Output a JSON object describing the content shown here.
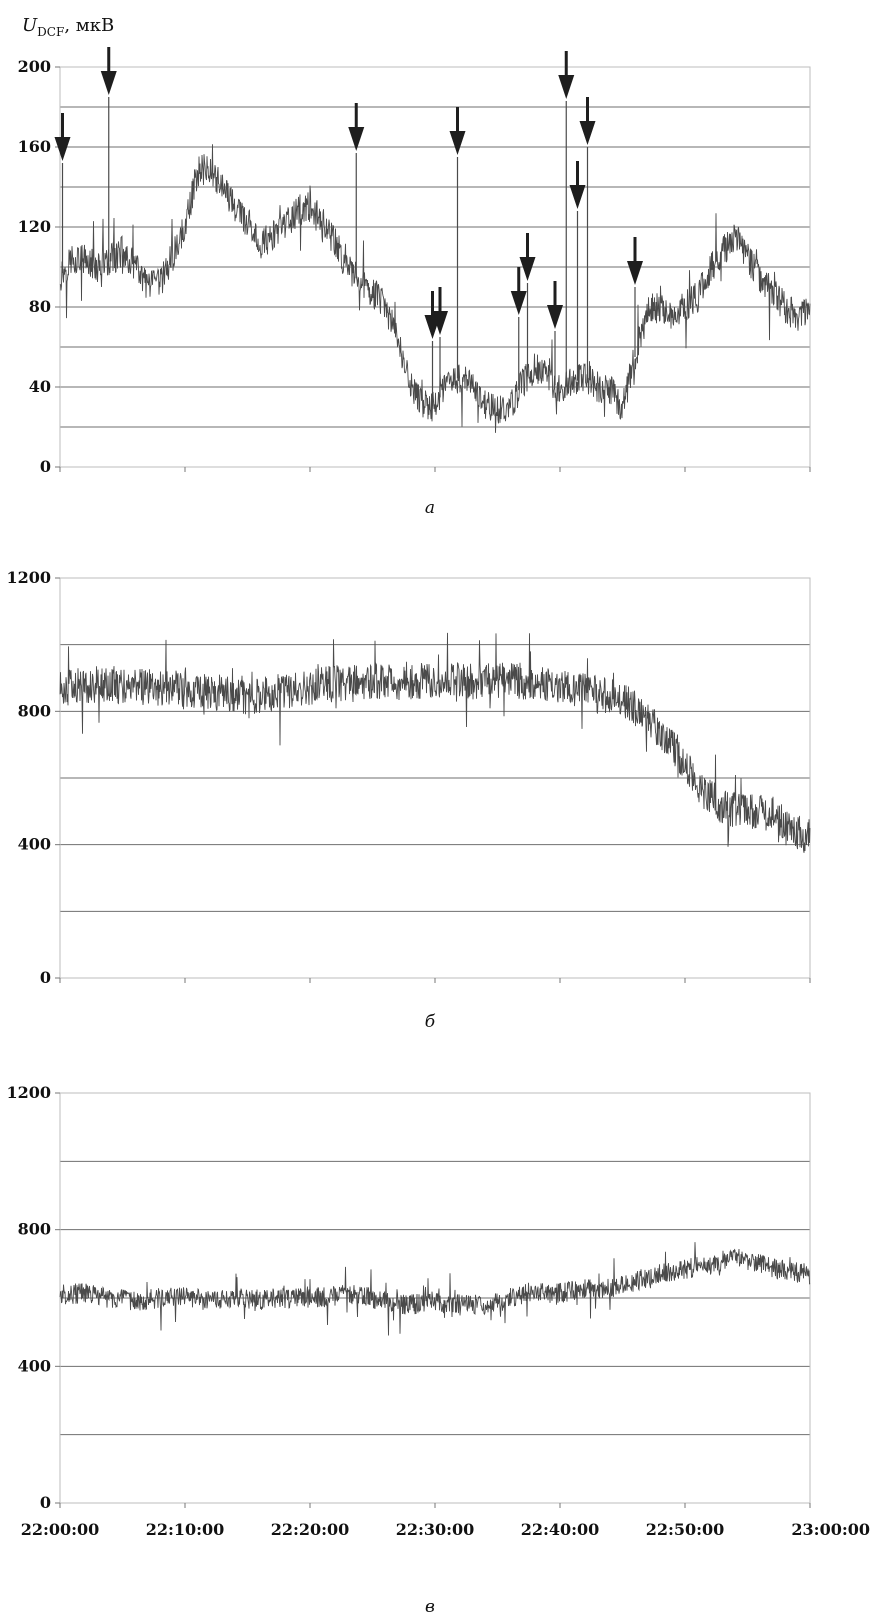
{
  "chart_data": [
    {
      "type": "line",
      "panel_label": "а",
      "ylabel": "U",
      "ylabel_sub": "DCF",
      "ylabel_unit": ", мкВ",
      "ylim": [
        0,
        200
      ],
      "yticks": [
        0,
        40,
        80,
        120,
        160,
        200
      ],
      "gridlines": [
        20,
        40,
        60,
        80,
        100,
        120,
        140,
        160,
        180
      ],
      "x_range_minutes": [
        0,
        60
      ],
      "series_color": "#4a4a4a",
      "baseline_points": [
        [
          0,
          95
        ],
        [
          1,
          105
        ],
        [
          2,
          103
        ],
        [
          3,
          100
        ],
        [
          4,
          103
        ],
        [
          5,
          108
        ],
        [
          6,
          100
        ],
        [
          7,
          90
        ],
        [
          8,
          92
        ],
        [
          9,
          105
        ],
        [
          10,
          120
        ],
        [
          11,
          148
        ],
        [
          12,
          150
        ],
        [
          13,
          140
        ],
        [
          14,
          130
        ],
        [
          15,
          122
        ],
        [
          16,
          112
        ],
        [
          17,
          115
        ],
        [
          18,
          120
        ],
        [
          19,
          128
        ],
        [
          20,
          130
        ],
        [
          21,
          122
        ],
        [
          22,
          112
        ],
        [
          23,
          100
        ],
        [
          24,
          92
        ],
        [
          25,
          88
        ],
        [
          26,
          80
        ],
        [
          27,
          65
        ],
        [
          28,
          40
        ],
        [
          29,
          32
        ],
        [
          30,
          30
        ],
        [
          31,
          42
        ],
        [
          32,
          45
        ],
        [
          33,
          40
        ],
        [
          34,
          32
        ],
        [
          35,
          28
        ],
        [
          36,
          30
        ],
        [
          37,
          42
        ],
        [
          38,
          50
        ],
        [
          39,
          45
        ],
        [
          40,
          38
        ],
        [
          41,
          42
        ],
        [
          42,
          45
        ],
        [
          43,
          40
        ],
        [
          44,
          38
        ],
        [
          45,
          30
        ],
        [
          46,
          55
        ],
        [
          47,
          78
        ],
        [
          48,
          80
        ],
        [
          49,
          76
        ],
        [
          50,
          80
        ],
        [
          51,
          85
        ],
        [
          52,
          98
        ],
        [
          53,
          108
        ],
        [
          54,
          115
        ],
        [
          55,
          105
        ],
        [
          56,
          95
        ],
        [
          57,
          88
        ],
        [
          58,
          80
        ],
        [
          59,
          75
        ],
        [
          60,
          80
        ]
      ],
      "noise_amplitude": 8,
      "spikes": [
        [
          0.2,
          152
        ],
        [
          3.9,
          185
        ],
        [
          23.7,
          157
        ],
        [
          29.8,
          63
        ],
        [
          30.4,
          65
        ],
        [
          31.8,
          155
        ],
        [
          36.7,
          75
        ],
        [
          37.4,
          92
        ],
        [
          39.6,
          68
        ],
        [
          40.5,
          183
        ],
        [
          41.4,
          128
        ],
        [
          42.2,
          160
        ],
        [
          46.0,
          90
        ]
      ],
      "arrows_at_spikes": true
    },
    {
      "type": "line",
      "panel_label": "б",
      "ylim": [
        0,
        1200
      ],
      "yticks": [
        0,
        400,
        800,
        1200
      ],
      "gridlines": [
        200,
        400,
        600,
        800,
        1000
      ],
      "x_range_minutes": [
        0,
        60
      ],
      "series_color": "#4a4a4a",
      "baseline_points": [
        [
          0,
          870
        ],
        [
          3,
          880
        ],
        [
          6,
          875
        ],
        [
          9,
          870
        ],
        [
          12,
          860
        ],
        [
          15,
          845
        ],
        [
          18,
          860
        ],
        [
          21,
          880
        ],
        [
          24,
          890
        ],
        [
          27,
          885
        ],
        [
          30,
          895
        ],
        [
          33,
          890
        ],
        [
          36,
          895
        ],
        [
          39,
          880
        ],
        [
          42,
          860
        ],
        [
          45,
          835
        ],
        [
          47,
          780
        ],
        [
          49,
          700
        ],
        [
          51,
          580
        ],
        [
          53,
          510
        ],
        [
          55,
          505
        ],
        [
          57,
          490
        ],
        [
          59,
          440
        ],
        [
          60,
          420
        ]
      ],
      "noise_amplitude": 55
    },
    {
      "type": "line",
      "panel_label": "в",
      "ylim": [
        0,
        1200
      ],
      "yticks": [
        0,
        400,
        800,
        1200
      ],
      "gridlines": [
        200,
        400,
        600,
        800,
        1000
      ],
      "x_range_minutes": [
        0,
        60
      ],
      "xtick_labels": [
        "22:00:00",
        "22:10:00",
        "22:20:00",
        "22:30:00",
        "22:40:00",
        "22:50:00",
        "23:00:00"
      ],
      "series_color": "#4a4a4a",
      "baseline_points": [
        [
          0,
          610
        ],
        [
          2,
          615
        ],
        [
          4,
          600
        ],
        [
          6,
          590
        ],
        [
          8,
          600
        ],
        [
          10,
          605
        ],
        [
          12,
          590
        ],
        [
          14,
          600
        ],
        [
          16,
          595
        ],
        [
          18,
          600
        ],
        [
          20,
          600
        ],
        [
          22,
          605
        ],
        [
          24,
          610
        ],
        [
          26,
          590
        ],
        [
          28,
          580
        ],
        [
          30,
          590
        ],
        [
          32,
          585
        ],
        [
          34,
          575
        ],
        [
          36,
          600
        ],
        [
          38,
          620
        ],
        [
          40,
          615
        ],
        [
          42,
          625
        ],
        [
          44,
          630
        ],
        [
          46,
          650
        ],
        [
          48,
          670
        ],
        [
          50,
          685
        ],
        [
          52,
          700
        ],
        [
          54,
          720
        ],
        [
          56,
          700
        ],
        [
          58,
          680
        ],
        [
          60,
          670
        ]
      ],
      "noise_amplitude": 30
    }
  ]
}
